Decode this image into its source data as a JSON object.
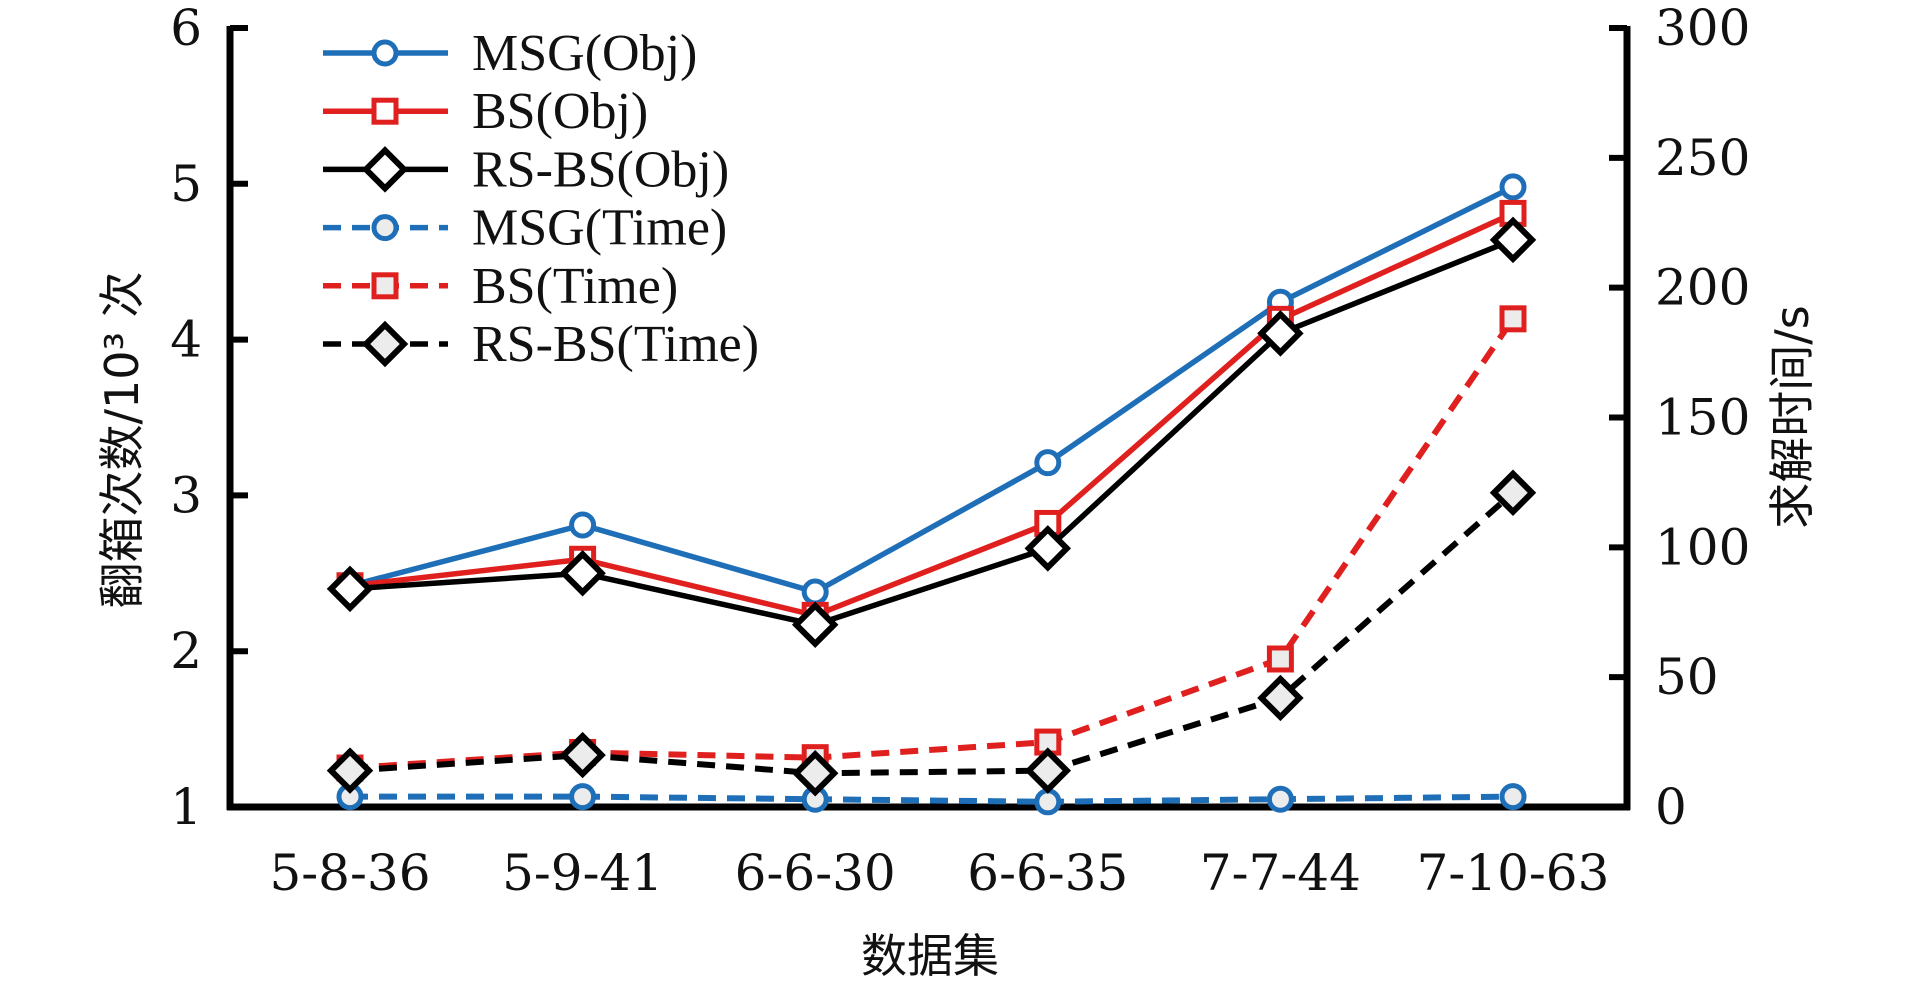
{
  "chart_data": {
    "type": "line",
    "title": "",
    "xlabel": "数据集",
    "ylabel": "翻箱次数/10³ 次",
    "y2label": "求解时间/s",
    "categories": [
      "5-8-36",
      "5-9-41",
      "6-6-30",
      "6-6-35",
      "7-7-44",
      "7-10-63"
    ],
    "ylim": [
      1,
      6
    ],
    "y2lim": [
      0,
      300
    ],
    "yticks": [
      "1",
      "2",
      "3",
      "4",
      "5",
      "6"
    ],
    "y2ticks": [
      "0",
      "50",
      "100",
      "150",
      "200",
      "250",
      "300"
    ],
    "grid": false,
    "legend_position": "top-left",
    "series": [
      {
        "name": "MSG(Obj)",
        "axis": "left",
        "color": "#1f6fb8",
        "dash": false,
        "marker": "circle",
        "values": [
          2.42,
          2.81,
          2.38,
          3.21,
          4.24,
          4.98
        ]
      },
      {
        "name": "BS(Obj)",
        "axis": "left",
        "color": "#e0201f",
        "dash": false,
        "marker": "square",
        "values": [
          2.42,
          2.59,
          2.23,
          2.82,
          4.13,
          4.81
        ]
      },
      {
        "name": "RS-BS(Obj)",
        "axis": "left",
        "color": "#000000",
        "dash": false,
        "marker": "diamond",
        "values": [
          2.4,
          2.5,
          2.17,
          2.66,
          4.04,
          4.64
        ]
      },
      {
        "name": "MSG(Time)",
        "axis": "right",
        "color": "#1f6fb8",
        "dash": true,
        "marker": "circle",
        "values": [
          4,
          4,
          3,
          2,
          3,
          4
        ]
      },
      {
        "name": "BS(Time)",
        "axis": "right",
        "color": "#e0201f",
        "dash": true,
        "marker": "square",
        "values": [
          15,
          21,
          19,
          25,
          57,
          188
        ]
      },
      {
        "name": "RS-BS(Time)",
        "axis": "right",
        "color": "#000000",
        "dash": true,
        "marker": "diamond",
        "values": [
          14,
          20,
          13,
          14,
          42,
          121
        ]
      }
    ]
  }
}
